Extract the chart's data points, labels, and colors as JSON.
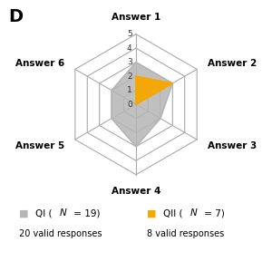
{
  "title": "D",
  "categories": [
    "Answer 1",
    "Answer 2",
    "Answer 3",
    "Answer 4",
    "Answer 5",
    "Answer 6"
  ],
  "QI_values": [
    3,
    3,
    2,
    3,
    2,
    2
  ],
  "QII_values": [
    2,
    3,
    0,
    0,
    0,
    0
  ],
  "max_val": 5,
  "num_rings": 5,
  "QI_color": "#b5b5b5",
  "QII_color": "#f5a800",
  "grid_color": "#aaaaaa",
  "grid_linewidth": 0.8,
  "spoke_color": "#aaaaaa",
  "bg_color": "#ffffff",
  "title_fontsize": 14,
  "label_fontsize": 7.5,
  "tick_fontsize": 6.5,
  "legend_fontsize": 7.5,
  "legend_sub_fontsize": 7.0
}
